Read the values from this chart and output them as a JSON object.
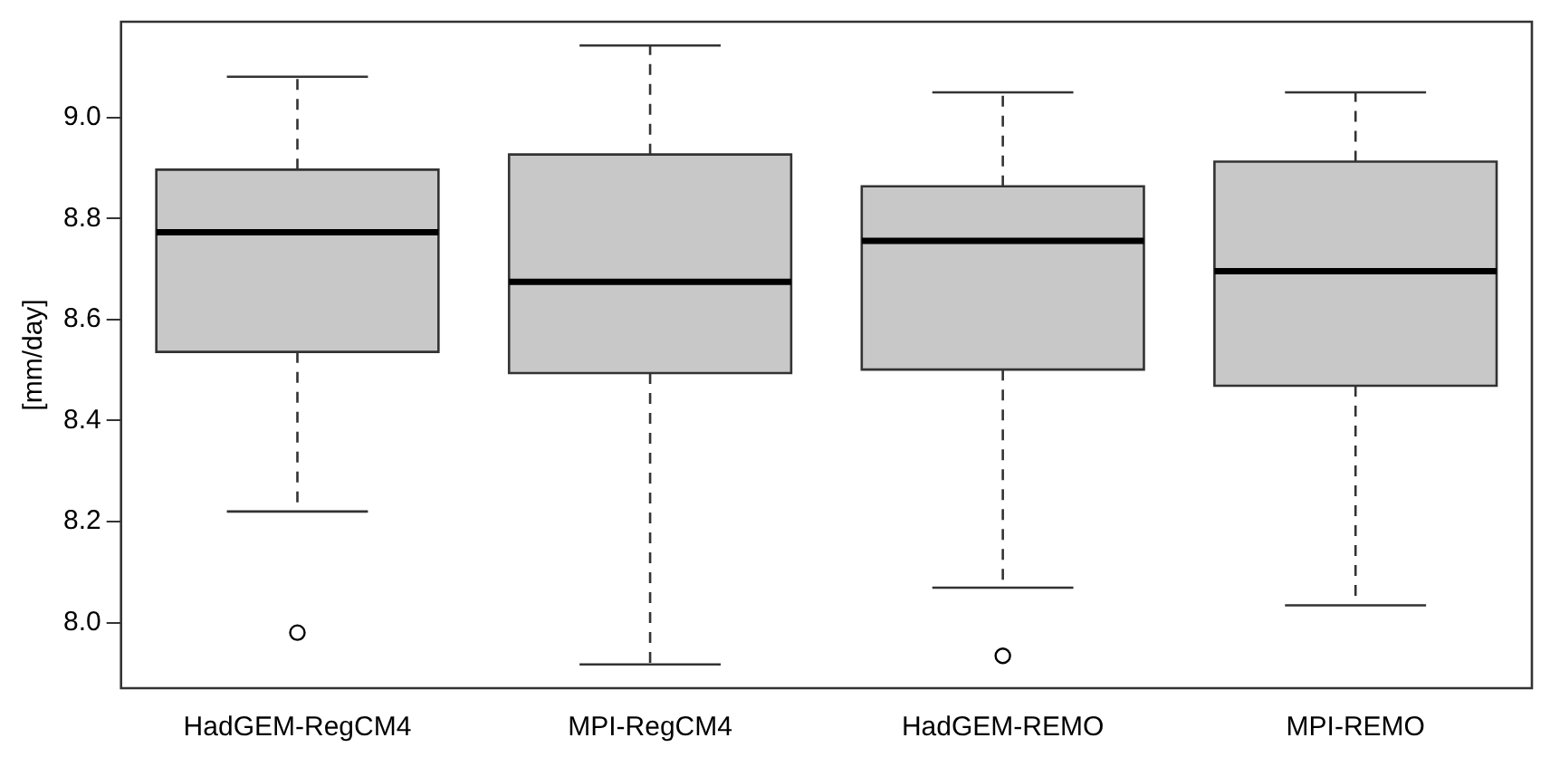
{
  "chart_data": {
    "type": "box",
    "ylabel": "[mm/day]",
    "categories": [
      "HadGEM-RegCM4",
      "MPI-RegCM4",
      "HadGEM-REMO",
      "MPI-REMO"
    ],
    "series": [
      {
        "color": "#c8c8c8",
        "boxes": [
          {
            "low": 8.22,
            "q1": 8.536,
            "median": 8.773,
            "q3": 8.897,
            "high": 9.081,
            "outliers": [
              7.98
            ]
          },
          {
            "low": 7.917,
            "q1": 8.494,
            "median": 8.675,
            "q3": 8.927,
            "high": 9.143
          },
          {
            "low": 8.069,
            "q1": 8.501,
            "median": 8.756,
            "q3": 8.864,
            "high": 9.05,
            "outliers": [
              7.934
            ]
          },
          {
            "low": 8.034,
            "q1": 8.469,
            "median": 8.696,
            "q3": 8.913,
            "high": 9.05
          }
        ]
      }
    ],
    "ylim": [
      7.87,
      9.19
    ],
    "yticks": [
      {
        "value": 8,
        "label": "8.0"
      },
      {
        "value": 8.2,
        "label": "8.2"
      },
      {
        "value": 8.4,
        "label": "8.4"
      },
      {
        "value": 8.6,
        "label": "8.6"
      },
      {
        "value": 8.8,
        "label": "8.8"
      },
      {
        "value": 9,
        "label": "9.0"
      }
    ],
    "grid": false
  }
}
